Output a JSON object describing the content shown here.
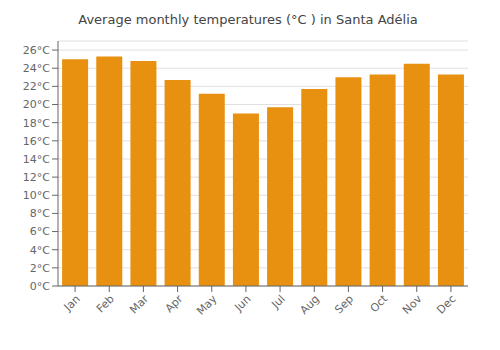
{
  "chart_data": {
    "type": "bar",
    "title": "Average monthly temperatures (°C ) in Santa Adélia",
    "categories": [
      "Jan",
      "Feb",
      "Mar",
      "Apr",
      "May",
      "Jun",
      "Jul",
      "Aug",
      "Sep",
      "Oct",
      "Nov",
      "Dec"
    ],
    "values": [
      25.0,
      25.3,
      24.8,
      22.7,
      21.2,
      19.0,
      19.7,
      21.7,
      23.0,
      23.3,
      24.5,
      23.3
    ],
    "color": "#E89010",
    "ylim": [
      0,
      27
    ],
    "yticks": [
      {
        "value": 0,
        "label": "0°C"
      },
      {
        "value": 2,
        "label": "2°C"
      },
      {
        "value": 4,
        "label": "4°C"
      },
      {
        "value": 6,
        "label": "6°C"
      },
      {
        "value": 8,
        "label": "8°C"
      },
      {
        "value": 10,
        "label": "10°C"
      },
      {
        "value": 12,
        "label": "12°C"
      },
      {
        "value": 14,
        "label": "14°C"
      },
      {
        "value": 16,
        "label": "16°C"
      },
      {
        "value": 18,
        "label": "18°C"
      },
      {
        "value": 20,
        "label": "20°C"
      },
      {
        "value": 22,
        "label": "22°C"
      },
      {
        "value": 24,
        "label": "24°C"
      },
      {
        "value": 26,
        "label": "26°C"
      }
    ],
    "grid": true
  }
}
